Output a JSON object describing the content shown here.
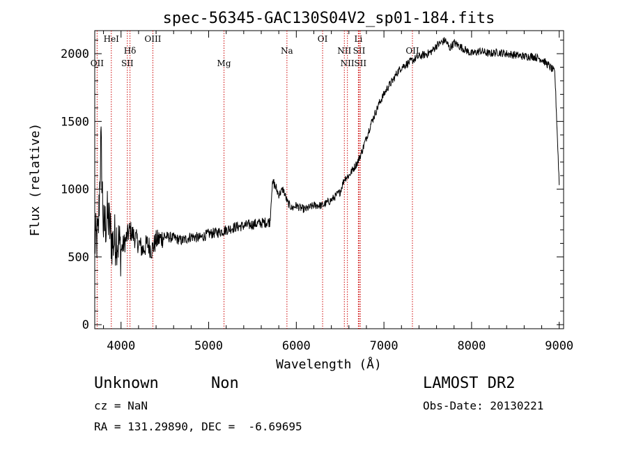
{
  "chart_data": {
    "type": "line",
    "title": "spec-56345-GAC130S04V2_sp01-184.fits",
    "xlabel": "Wavelength (Å)",
    "ylabel": "Flux (relative)",
    "xlim": [
      3700,
      9050
    ],
    "ylim": [
      -30,
      2170
    ],
    "x_ticks": [
      4000,
      5000,
      6000,
      7000,
      8000,
      9000
    ],
    "y_ticks": [
      0,
      500,
      1000,
      1500,
      2000
    ],
    "grid": false,
    "line_color": "#000000",
    "line_markers_color": "#cc0000",
    "spectrum": {
      "x": [
        3700,
        3740,
        3770,
        3800,
        3850,
        3900,
        3950,
        4000,
        4050,
        4100,
        4150,
        4200,
        4250,
        4300,
        4350,
        4400,
        4500,
        4600,
        4700,
        4800,
        4900,
        5000,
        5100,
        5200,
        5300,
        5400,
        5500,
        5600,
        5700,
        5720,
        5740,
        5800,
        5850,
        5900,
        5950,
        6000,
        6050,
        6100,
        6200,
        6300,
        6400,
        6500,
        6550,
        6600,
        6650,
        6700,
        6750,
        6800,
        6850,
        6900,
        6950,
        7000,
        7050,
        7100,
        7150,
        7200,
        7300,
        7400,
        7500,
        7550,
        7600,
        7650,
        7700,
        7750,
        7800,
        7900,
        8000,
        8100,
        8200,
        8300,
        8400,
        8500,
        8600,
        8700,
        8800,
        8900,
        8950,
        9000
      ],
      "y": [
        600,
        650,
        1350,
        700,
        800,
        600,
        650,
        550,
        620,
        700,
        650,
        600,
        550,
        600,
        550,
        620,
        650,
        640,
        620,
        650,
        640,
        670,
        680,
        700,
        720,
        730,
        740,
        750,
        760,
        1000,
        1050,
        960,
        1000,
        900,
        860,
        880,
        860,
        850,
        880,
        880,
        920,
        980,
        1080,
        1100,
        1150,
        1200,
        1280,
        1380,
        1480,
        1560,
        1640,
        1700,
        1760,
        1800,
        1860,
        1900,
        1940,
        1980,
        2000,
        2020,
        2060,
        2080,
        2100,
        2040,
        2080,
        2040,
        2000,
        2020,
        2000,
        2010,
        2000,
        1990,
        1980,
        1980,
        1960,
        1900,
        1860,
        1040
      ]
    },
    "lines": [
      {
        "label": "OII",
        "wavelength": 3727,
        "row": 2
      },
      {
        "label": "HeI",
        "wavelength": 3889,
        "row": 0
      },
      {
        "label": "Hδ",
        "wavelength": 4102,
        "row": 1
      },
      {
        "label": "SII",
        "wavelength": 4072,
        "row": 2
      },
      {
        "label": "OIII",
        "wavelength": 4363,
        "row": 0
      },
      {
        "label": "Mg",
        "wavelength": 5175,
        "row": 2
      },
      {
        "label": "Na",
        "wavelength": 5893,
        "row": 1
      },
      {
        "label": "OI",
        "wavelength": 6300,
        "row": 0
      },
      {
        "label": "NII",
        "wavelength": 6548,
        "row": 1
      },
      {
        "label": "NII",
        "wavelength": 6583,
        "row": 2
      },
      {
        "label": "Li",
        "wavelength": 6708,
        "row": 0
      },
      {
        "label": "SII",
        "wavelength": 6717,
        "row": 1
      },
      {
        "label": "SII",
        "wavelength": 6731,
        "row": 2
      },
      {
        "label": "OII",
        "wavelength": 7325,
        "row": 1
      }
    ]
  },
  "info": {
    "object_class": "Unknown",
    "subclass": "Non",
    "survey": "LAMOST DR2",
    "cz": "cz = NaN",
    "obs_date": "Obs-Date: 20130221",
    "coords": "RA = 131.29890, DEC =  -6.69695"
  }
}
